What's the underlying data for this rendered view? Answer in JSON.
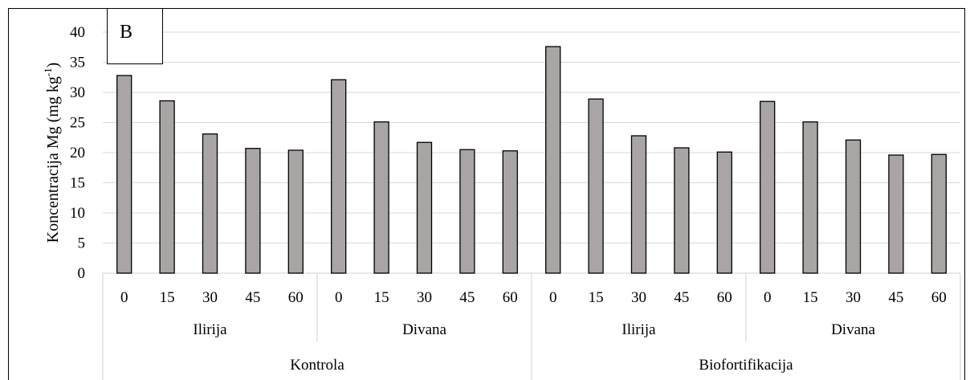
{
  "panel_label": "B",
  "chart_data": {
    "type": "bar",
    "ylabel": "Koncentracija Mg (mg kg",
    "ylabel_superscript": "-1",
    "ylabel_close": ")",
    "ylim": [
      0,
      40
    ],
    "yticks": [
      0,
      5,
      10,
      15,
      20,
      25,
      30,
      35,
      40
    ],
    "grid": true,
    "legend": "none",
    "bar_color": "#aaa5a5",
    "bar_edge_color": "#000000",
    "grid_color": "#d9d9d9",
    "groups": [
      {
        "name": "Kontrola",
        "subgroups": [
          {
            "name": "Ilirija",
            "categories": [
              "0",
              "15",
              "30",
              "45",
              "60"
            ],
            "values": [
              32.8,
              28.6,
              23.1,
              20.7,
              20.4
            ]
          },
          {
            "name": "Divana",
            "categories": [
              "0",
              "15",
              "30",
              "45",
              "60"
            ],
            "values": [
              32.1,
              25.1,
              21.7,
              20.5,
              20.3
            ]
          }
        ]
      },
      {
        "name": "Biofortifikacija",
        "subgroups": [
          {
            "name": "Ilirija",
            "categories": [
              "0",
              "15",
              "30",
              "45",
              "60"
            ],
            "values": [
              37.6,
              28.9,
              22.8,
              20.8,
              20.1
            ]
          },
          {
            "name": "Divana",
            "categories": [
              "0",
              "15",
              "30",
              "45",
              "60"
            ],
            "values": [
              28.5,
              25.1,
              22.1,
              19.6,
              19.7
            ]
          }
        ]
      }
    ]
  }
}
